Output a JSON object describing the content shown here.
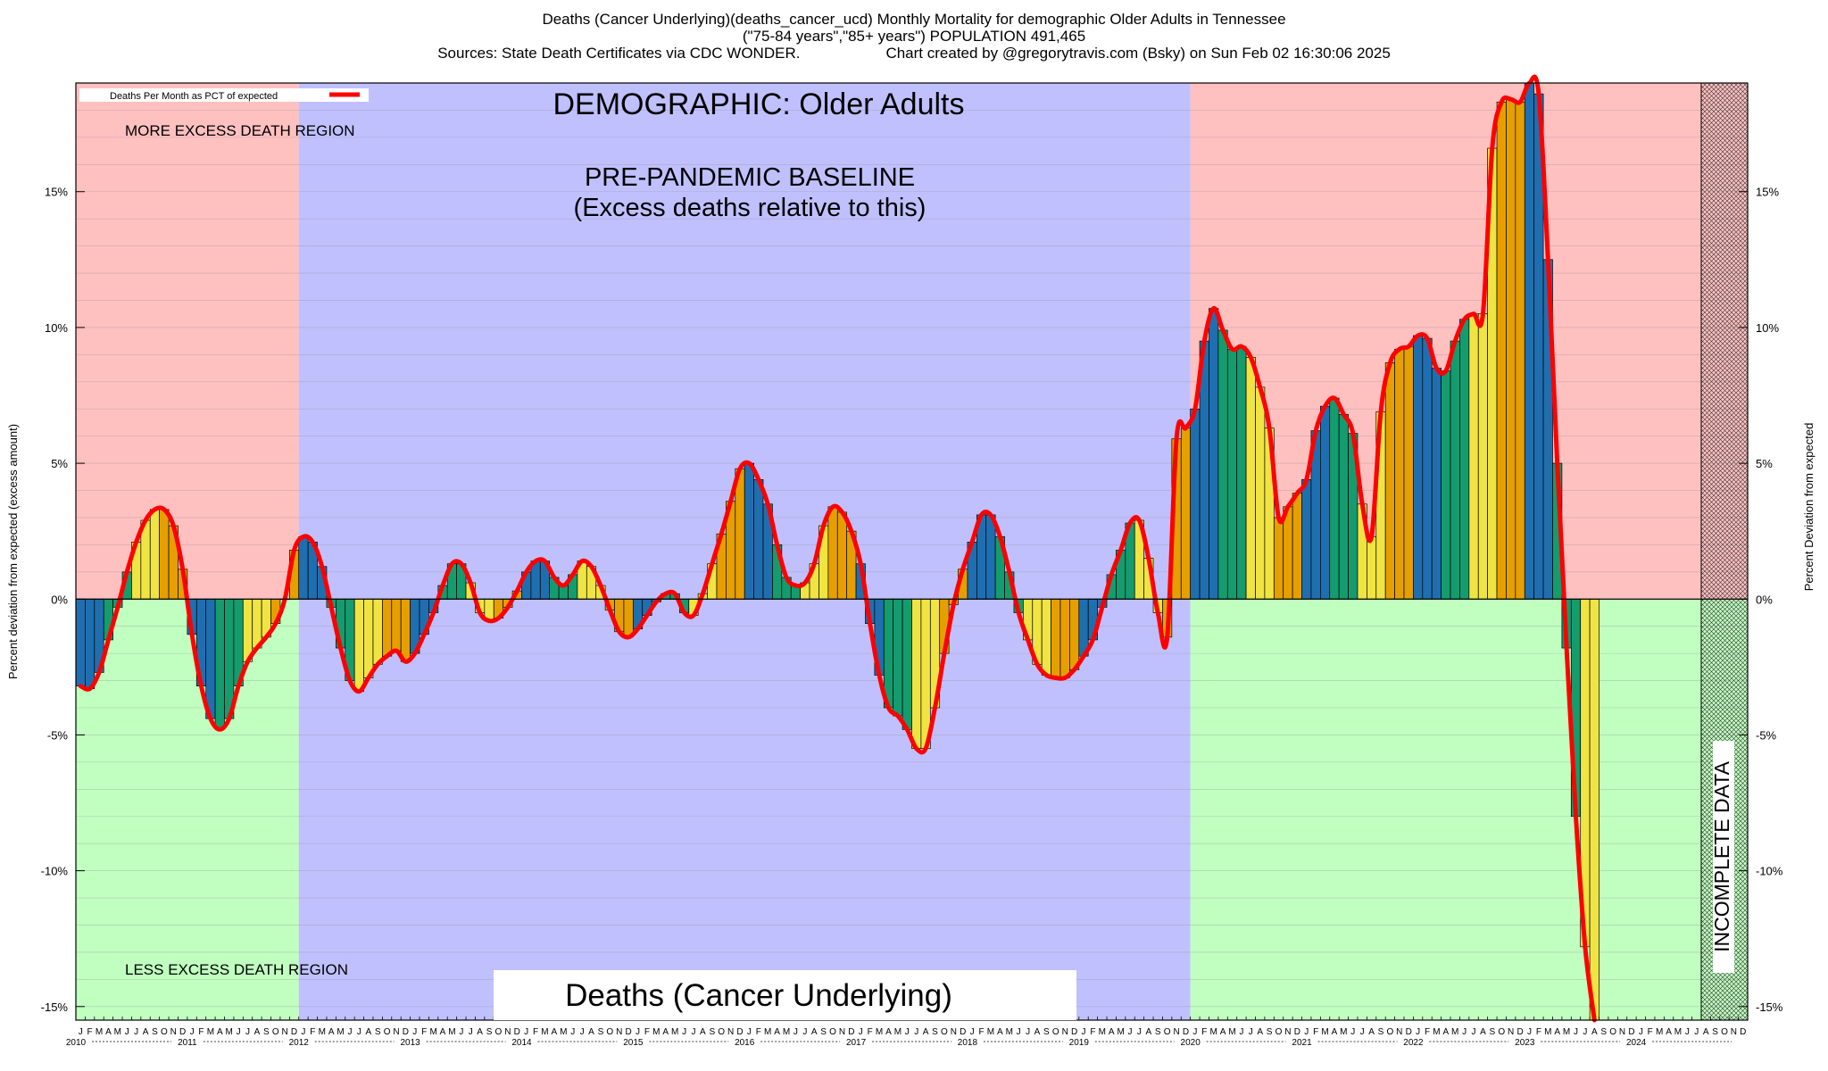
{
  "header": {
    "line1": "Deaths (Cancer Underlying)(deaths_cancer_ucd) Monthly Mortality for demographic Older Adults in Tennessee",
    "line2": "(\"75-84 years\",\"85+ years\") POPULATION 491,465",
    "line3_left": "Sources: State Death Certificates via CDC WONDER.",
    "line3_right": "Chart created by @gregorytravis.com (Bsky) on Sun Feb 02 16:30:06 2025"
  },
  "annotations": {
    "demographic": "DEMOGRAPHIC: Older Adults",
    "baseline_line1": "PRE-PANDEMIC BASELINE",
    "baseline_line2": "(Excess deaths relative to this)",
    "more_region": "MORE EXCESS DEATH REGION",
    "less_region": "LESS EXCESS DEATH REGION",
    "bottom_title": "Deaths (Cancer Underlying)",
    "incomplete": "INCOMPLETE DATA"
  },
  "colors": {
    "excess_region": "#ffc0c0",
    "less_region": "#c0ffc0",
    "baseline_region": "#c0c0ff",
    "line": "#ff0000",
    "bar_q1": "#1f6fb0",
    "bar_q2": "#149c6e",
    "bar_q3": "#f0e442",
    "bar_q4": "#e69f00"
  },
  "chart_data": {
    "type": "bar",
    "title": "Deaths (Cancer Underlying)",
    "legend": {
      "label": "Deaths Per Month as PCT of expected",
      "placement": "top-left"
    },
    "ylabel_left": "Percent deviation from expected (excess amount)",
    "ylabel_right": "Percent Deviation from expected",
    "ylim": [
      -15.5,
      19.0
    ],
    "yticks": [
      -15,
      -10,
      -5,
      0,
      5,
      10,
      15
    ],
    "ytick_labels": [
      "-15%",
      "-10%",
      "-5%",
      "0%",
      "5%",
      "10%",
      "15%"
    ],
    "month_letters": [
      "J",
      "F",
      "M",
      "A",
      "M",
      "J",
      "J",
      "A",
      "S",
      "O",
      "N",
      "D"
    ],
    "years": [
      "2010",
      "2011",
      "2012",
      "2013",
      "2014",
      "2015",
      "2016",
      "2017",
      "2018",
      "2019",
      "2020",
      "2021",
      "2022",
      "2023",
      "2024"
    ],
    "baseline_years": [
      "2012",
      "2019"
    ],
    "incomplete_from": "2024-08",
    "start_month": "2010-01",
    "values": [
      -3.2,
      -3.3,
      -2.7,
      -1.5,
      -0.3,
      1.0,
      2.1,
      2.9,
      3.3,
      3.3,
      2.7,
      1.1,
      -1.3,
      -3.2,
      -4.4,
      -4.8,
      -4.4,
      -3.2,
      -2.3,
      -1.8,
      -1.4,
      -0.9,
      0.0,
      1.8,
      2.3,
      2.1,
      1.2,
      -0.3,
      -1.8,
      -3.0,
      -3.4,
      -2.9,
      -2.4,
      -2.1,
      -1.9,
      -2.3,
      -2.0,
      -1.3,
      -0.5,
      0.5,
      1.3,
      1.3,
      0.6,
      -0.5,
      -0.8,
      -0.7,
      -0.3,
      0.3,
      1.0,
      1.4,
      1.4,
      0.8,
      0.5,
      0.9,
      1.4,
      1.2,
      0.5,
      -0.4,
      -1.2,
      -1.4,
      -1.1,
      -0.6,
      -0.1,
      0.2,
      0.2,
      -0.5,
      -0.6,
      0.2,
      1.3,
      2.4,
      3.6,
      4.8,
      5.0,
      4.4,
      3.5,
      2.0,
      0.8,
      0.5,
      0.6,
      1.3,
      2.7,
      3.4,
      3.2,
      2.5,
      1.3,
      -0.9,
      -2.8,
      -4.0,
      -4.3,
      -4.8,
      -5.5,
      -5.5,
      -4.0,
      -2.0,
      -0.2,
      1.1,
      2.1,
      3.1,
      3.1,
      2.3,
      1.0,
      -0.5,
      -1.5,
      -2.4,
      -2.8,
      -2.9,
      -2.9,
      -2.6,
      -2.1,
      -1.5,
      -0.3,
      0.9,
      1.8,
      2.8,
      2.9,
      1.5,
      -0.5,
      -1.4,
      5.9,
      6.3,
      7.0,
      9.5,
      10.7,
      9.9,
      9.2,
      9.3,
      8.9,
      7.8,
      6.3,
      3.0,
      3.4,
      3.9,
      4.4,
      6.2,
      7.1,
      7.4,
      6.8,
      6.1,
      3.5,
      2.3,
      6.9,
      8.7,
      9.2,
      9.3,
      9.7,
      9.6,
      8.5,
      8.4,
      9.5,
      10.3,
      10.5,
      10.5,
      16.6,
      18.3,
      18.4,
      18.3,
      19.0,
      18.6,
      12.5,
      5.0,
      -1.8,
      -8.0,
      -12.8,
      -15.5
    ]
  }
}
